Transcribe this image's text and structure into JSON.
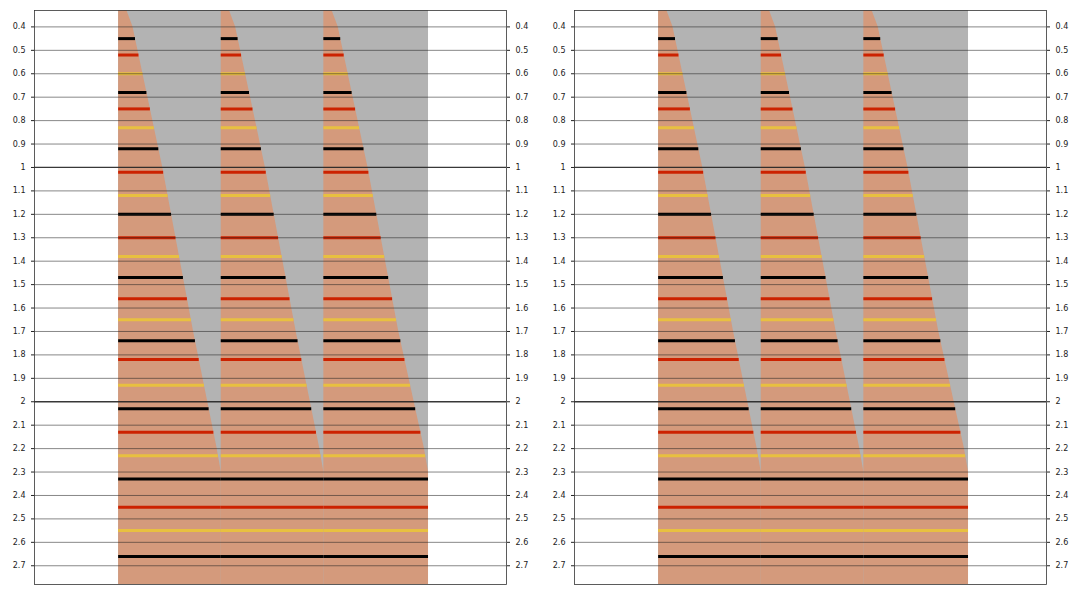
{
  "chart_data": [
    {
      "type": "seismic",
      "tick_labels": "y",
      "grid": true,
      "ylim": [
        0.33,
        2.78
      ],
      "yticks": [
        0.4,
        0.5,
        0.6,
        0.7,
        0.8,
        0.9,
        1,
        1.1,
        1.2,
        1.3,
        1.4,
        1.5,
        1.6,
        1.7,
        1.8,
        1.9,
        2,
        2.1,
        2.2,
        2.3,
        2.4,
        2.5,
        2.6,
        2.7
      ],
      "xlim": [
        0,
        46
      ],
      "data_extent": [
        8.2,
        38.4
      ],
      "color": "#b3b3b3",
      "gathers": [
        {
          "x": [
            8.2,
            18.2
          ],
          "mute": [
            [
              9.0,
              0.33
            ],
            [
              9.6,
              0.4
            ],
            [
              12.5,
              1.0
            ],
            [
              15.5,
              1.7
            ],
            [
              17.8,
              2.2
            ],
            [
              18.2,
              2.3
            ],
            [
              18.2,
              2.78
            ]
          ]
        },
        {
          "x": [
            18.2,
            28.2
          ],
          "mute": [
            [
              19.0,
              0.33
            ],
            [
              19.6,
              0.4
            ],
            [
              22.5,
              1.0
            ],
            [
              25.5,
              1.7
            ],
            [
              27.8,
              2.2
            ],
            [
              28.2,
              2.3
            ],
            [
              28.2,
              2.78
            ]
          ]
        },
        {
          "x": [
            28.2,
            38.4
          ],
          "mute": [
            [
              29.0,
              0.33
            ],
            [
              29.6,
              0.4
            ],
            [
              32.5,
              1.0
            ],
            [
              35.5,
              1.7
            ],
            [
              38.0,
              2.2
            ],
            [
              38.4,
              2.3
            ],
            [
              38.4,
              2.78
            ]
          ]
        }
      ],
      "events": {
        "values": [
          0.45,
          0.52,
          0.6,
          0.68,
          0.75,
          0.83,
          0.92,
          1.02,
          1.12,
          1.2,
          1.3,
          1.38,
          1.47,
          1.56,
          1.65,
          1.74,
          1.82,
          1.93,
          2.03,
          2.13,
          2.23,
          2.33,
          2.45,
          2.55,
          2.66
        ],
        "colors": [
          "#000000",
          "#cc2200",
          "#e8c040",
          "#000000",
          "#cc2200",
          "#e8c040",
          "#000000",
          "#cc2200",
          "#e8c040",
          "#000000",
          "#cc2200",
          "#e8c040",
          "#000000",
          "#cc2200",
          "#e8c040",
          "#000000",
          "#cc2200",
          "#e8c040",
          "#000000",
          "#cc2200",
          "#e8c040",
          "#000000",
          "#cc2200",
          "#e8c040",
          "#000000"
        ]
      }
    },
    {
      "type": "seismic",
      "tick_labels": "y",
      "grid": true,
      "ylim": [
        0.33,
        2.78
      ],
      "yticks": [
        0.4,
        0.5,
        0.6,
        0.7,
        0.8,
        0.9,
        1,
        1.1,
        1.2,
        1.3,
        1.4,
        1.5,
        1.6,
        1.7,
        1.8,
        1.9,
        2,
        2.1,
        2.2,
        2.3,
        2.4,
        2.5,
        2.6,
        2.7
      ],
      "xlim": [
        0,
        46
      ],
      "data_extent": [
        8.2,
        38.4
      ],
      "color": "#b3b3b3",
      "gathers": [
        {
          "x": [
            8.2,
            18.2
          ],
          "mute": [
            [
              9.0,
              0.33
            ],
            [
              9.6,
              0.4
            ],
            [
              12.5,
              1.0
            ],
            [
              15.5,
              1.7
            ],
            [
              17.8,
              2.2
            ],
            [
              18.2,
              2.3
            ],
            [
              18.2,
              2.78
            ]
          ]
        },
        {
          "x": [
            18.2,
            28.2
          ],
          "mute": [
            [
              19.0,
              0.33
            ],
            [
              19.6,
              0.4
            ],
            [
              22.5,
              1.0
            ],
            [
              25.5,
              1.7
            ],
            [
              27.8,
              2.2
            ],
            [
              28.2,
              2.3
            ],
            [
              28.2,
              2.78
            ]
          ]
        },
        {
          "x": [
            28.2,
            38.4
          ],
          "mute": [
            [
              29.0,
              0.33
            ],
            [
              29.6,
              0.4
            ],
            [
              32.5,
              1.0
            ],
            [
              35.5,
              1.7
            ],
            [
              38.0,
              2.2
            ],
            [
              38.4,
              2.3
            ],
            [
              38.4,
              2.78
            ]
          ]
        }
      ],
      "events": {
        "values": [
          0.45,
          0.52,
          0.6,
          0.68,
          0.75,
          0.83,
          0.92,
          1.02,
          1.12,
          1.2,
          1.3,
          1.38,
          1.47,
          1.56,
          1.65,
          1.74,
          1.82,
          1.93,
          2.03,
          2.13,
          2.23,
          2.33,
          2.45,
          2.55,
          2.66
        ],
        "colors": [
          "#000000",
          "#cc2200",
          "#e8c040",
          "#000000",
          "#cc2200",
          "#e8c040",
          "#000000",
          "#cc2200",
          "#e8c040",
          "#000000",
          "#cc2200",
          "#e8c040",
          "#000000",
          "#cc2200",
          "#e8c040",
          "#000000",
          "#cc2200",
          "#e8c040",
          "#000000",
          "#cc2200",
          "#e8c040",
          "#000000",
          "#cc2200",
          "#e8c040",
          "#000000"
        ]
      }
    }
  ]
}
